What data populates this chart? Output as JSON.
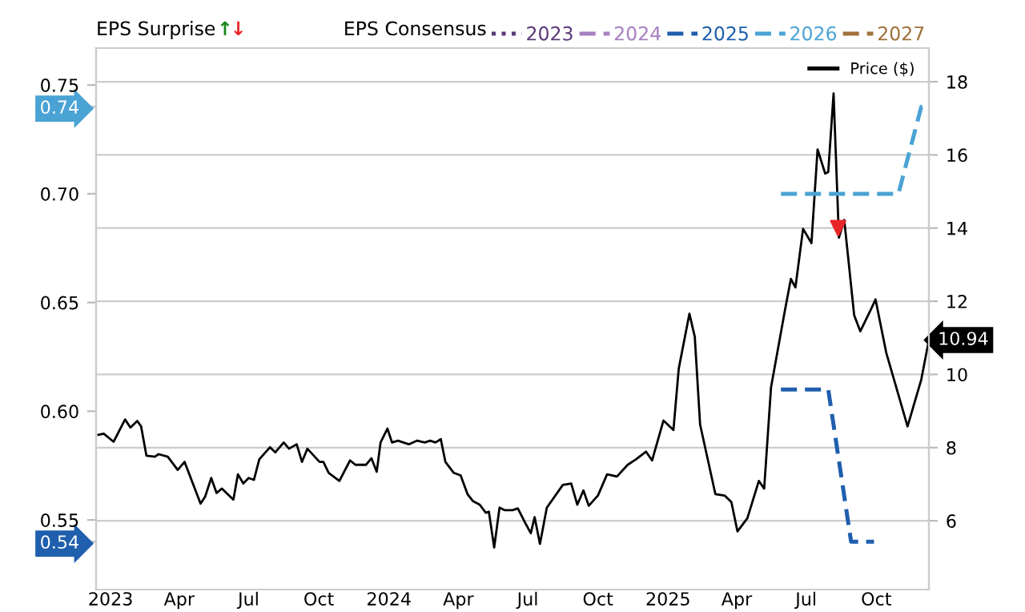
{
  "chart_data": {
    "type": "line",
    "legend_title": "EPS Consensus",
    "annotations": [
      "EPS Surprise",
      "↑",
      "↓"
    ],
    "legend": "top",
    "grid": true,
    "xlim": [
      "2022-12-13",
      "2025-12-09"
    ],
    "xticks": [
      {
        "value": "2023-01-01",
        "label": "2023"
      },
      {
        "value": "2023-04-01",
        "label": "Apr"
      },
      {
        "value": "2023-07-01",
        "label": "Jul"
      },
      {
        "value": "2023-10-01",
        "label": "Oct"
      },
      {
        "value": "2024-01-01",
        "label": "2024"
      },
      {
        "value": "2024-04-01",
        "label": "Apr"
      },
      {
        "value": "2024-07-01",
        "label": "Jul"
      },
      {
        "value": "2024-10-01",
        "label": "Oct"
      },
      {
        "value": "2025-01-01",
        "label": "2025"
      },
      {
        "value": "2025-04-01",
        "label": "Apr"
      },
      {
        "value": "2025-07-01",
        "label": "Jul"
      },
      {
        "value": "2025-10-01",
        "label": "Oct"
      }
    ],
    "ylim": [
      0.518,
      0.767
    ],
    "yticks": [
      {
        "value": 0.54,
        "label": "0.54"
      },
      {
        "value": 0.55,
        "label": "0.55"
      },
      {
        "value": 0.6,
        "label": "0.60"
      },
      {
        "value": 0.65,
        "label": "0.65"
      },
      {
        "value": 0.7,
        "label": "0.70"
      },
      {
        "value": 0.74,
        "label": "0.74"
      },
      {
        "value": 0.75,
        "label": "0.75"
      }
    ],
    "y2lim": [
      4.12,
      18.92
    ],
    "y2ticks": [
      6,
      8,
      10,
      12,
      14,
      16,
      18
    ],
    "series": [
      {
        "name": "2023",
        "color": "#5b3a7a",
        "line_style": "dotted"
      },
      {
        "name": "2024",
        "color": "#a67fc0",
        "line_style": "dashed"
      },
      {
        "name": "2025",
        "color": "#1f5fad",
        "line_style": "dashed",
        "x": [
          "2025-05-29",
          "2025-07-30",
          "2025-08-29",
          "2025-09-28"
        ],
        "values": [
          0.61,
          0.61,
          0.54,
          0.54
        ]
      },
      {
        "name": "2026",
        "color": "#4aa3d4",
        "line_style": "dashed",
        "x": [
          "2025-05-29",
          "2025-10-30",
          "2025-11-29",
          "2025-12-09"
        ],
        "values": [
          0.7,
          0.7,
          0.74,
          0.74
        ]
      },
      {
        "name": "2027",
        "color": "#a0703a",
        "line_style": "dashed"
      },
      {
        "name": "Price ($)",
        "color": "#000000",
        "axis": "y2",
        "line_style": "solid",
        "x": [
          "2022-12-16",
          "2022-12-23",
          "2023-01-05",
          "2023-01-20",
          "2023-01-27",
          "2023-02-05",
          "2023-02-10",
          "2023-02-17",
          "2023-02-28",
          "2023-03-05",
          "2023-03-17",
          "2023-03-30",
          "2023-04-08",
          "2023-04-29",
          "2023-05-05",
          "2023-05-13",
          "2023-05-20",
          "2023-05-27",
          "2023-06-11",
          "2023-06-17",
          "2023-06-24",
          "2023-07-01",
          "2023-07-08",
          "2023-07-15",
          "2023-07-29",
          "2023-08-05",
          "2023-08-16",
          "2023-08-23",
          "2023-09-02",
          "2023-09-09",
          "2023-09-16",
          "2023-10-02",
          "2023-10-07",
          "2023-10-14",
          "2023-10-28",
          "2023-11-11",
          "2023-11-18",
          "2023-12-02",
          "2023-12-09",
          "2023-12-16",
          "2023-12-21",
          "2023-12-30",
          "2024-01-05",
          "2024-01-13",
          "2024-01-27",
          "2024-02-07",
          "2024-02-17",
          "2024-02-24",
          "2024-03-02",
          "2024-03-09",
          "2024-03-15",
          "2024-03-26",
          "2024-04-04",
          "2024-04-13",
          "2024-04-20",
          "2024-04-29",
          "2024-05-07",
          "2024-05-11",
          "2024-05-18",
          "2024-05-25",
          "2024-06-01",
          "2024-06-11",
          "2024-06-18",
          "2024-06-28",
          "2024-07-05",
          "2024-07-10",
          "2024-07-17",
          "2024-07-26",
          "2024-08-16",
          "2024-08-27",
          "2024-09-04",
          "2024-09-12",
          "2024-09-19",
          "2024-10-01",
          "2024-10-13",
          "2024-10-26",
          "2024-11-09",
          "2024-11-20",
          "2024-12-03",
          "2024-12-11",
          "2024-12-26",
          "2025-01-08",
          "2025-01-15",
          "2025-01-29",
          "2025-02-05",
          "2025-02-12",
          "2025-03-04",
          "2025-03-16",
          "2025-03-25",
          "2025-04-02",
          "2025-04-15",
          "2025-04-30",
          "2025-05-07",
          "2025-05-16",
          "2025-06-03",
          "2025-06-11",
          "2025-06-17",
          "2025-06-27",
          "2025-07-08",
          "2025-07-16",
          "2025-07-26",
          "2025-07-30",
          "2025-08-06",
          "2025-08-13",
          "2025-08-20",
          "2025-09-02",
          "2025-09-10",
          "2025-09-22",
          "2025-09-30",
          "2025-10-14",
          "2025-11-11",
          "2025-11-29",
          "2025-12-09"
        ],
        "values": [
          8.35,
          8.38,
          8.16,
          8.77,
          8.55,
          8.73,
          8.58,
          7.78,
          7.75,
          7.82,
          7.75,
          7.39,
          7.61,
          6.47,
          6.66,
          7.17,
          6.76,
          6.88,
          6.58,
          7.27,
          7.02,
          7.17,
          7.12,
          7.68,
          8.01,
          7.87,
          8.14,
          7.97,
          8.09,
          7.61,
          7.97,
          7.61,
          7.61,
          7.31,
          7.09,
          7.65,
          7.53,
          7.53,
          7.71,
          7.34,
          8.14,
          8.52,
          8.14,
          8.19,
          8.09,
          8.19,
          8.14,
          8.19,
          8.14,
          8.23,
          7.61,
          7.31,
          7.24,
          6.73,
          6.54,
          6.44,
          6.22,
          6.25,
          5.27,
          6.36,
          6.29,
          6.29,
          6.34,
          5.93,
          5.66,
          6.1,
          5.37,
          6.36,
          6.98,
          7.02,
          6.44,
          6.83,
          6.41,
          6.69,
          7.27,
          7.21,
          7.53,
          7.68,
          7.89,
          7.65,
          8.74,
          8.48,
          10.16,
          11.66,
          11.03,
          8.63,
          6.73,
          6.69,
          6.51,
          5.71,
          6.07,
          7.09,
          6.88,
          9.65,
          11.73,
          12.61,
          12.38,
          13.98,
          13.59,
          16.15,
          15.49,
          15.53,
          17.68,
          13.74,
          14.22,
          11.62,
          11.18,
          11.69,
          12.05,
          10.6,
          8.58,
          9.86,
          10.94
        ],
        "value_labels": [
          null,
          null,
          null,
          null,
          null,
          null,
          null,
          null,
          null,
          null,
          null,
          null,
          null,
          null,
          null,
          null,
          null,
          null,
          null,
          null,
          null,
          null,
          null,
          null,
          null,
          null,
          null,
          null,
          null,
          null,
          null,
          null,
          null,
          null,
          null,
          null,
          null,
          null,
          null,
          null,
          null,
          null,
          null,
          null,
          null,
          null,
          null,
          null,
          null,
          null,
          null,
          null,
          null,
          null,
          null,
          null,
          null,
          null,
          null,
          null,
          null,
          null,
          null,
          null,
          null,
          null,
          null,
          null,
          null,
          null,
          null,
          null,
          null,
          null,
          null,
          null,
          null,
          null,
          null,
          null,
          null,
          null,
          null,
          null,
          null,
          null,
          null,
          null,
          null,
          null,
          null,
          null,
          null,
          null,
          null,
          null,
          null,
          null,
          null,
          null,
          null,
          null,
          null,
          null,
          null,
          null,
          null,
          null,
          null,
          null,
          null,
          null,
          "10.94"
        ]
      },
      {
        "type": "scatter",
        "color": "#e8262a",
        "axis": "y2",
        "marker": "triangle",
        "x": [
          "2025-08-12"
        ],
        "values": [
          14.0
        ]
      }
    ]
  }
}
